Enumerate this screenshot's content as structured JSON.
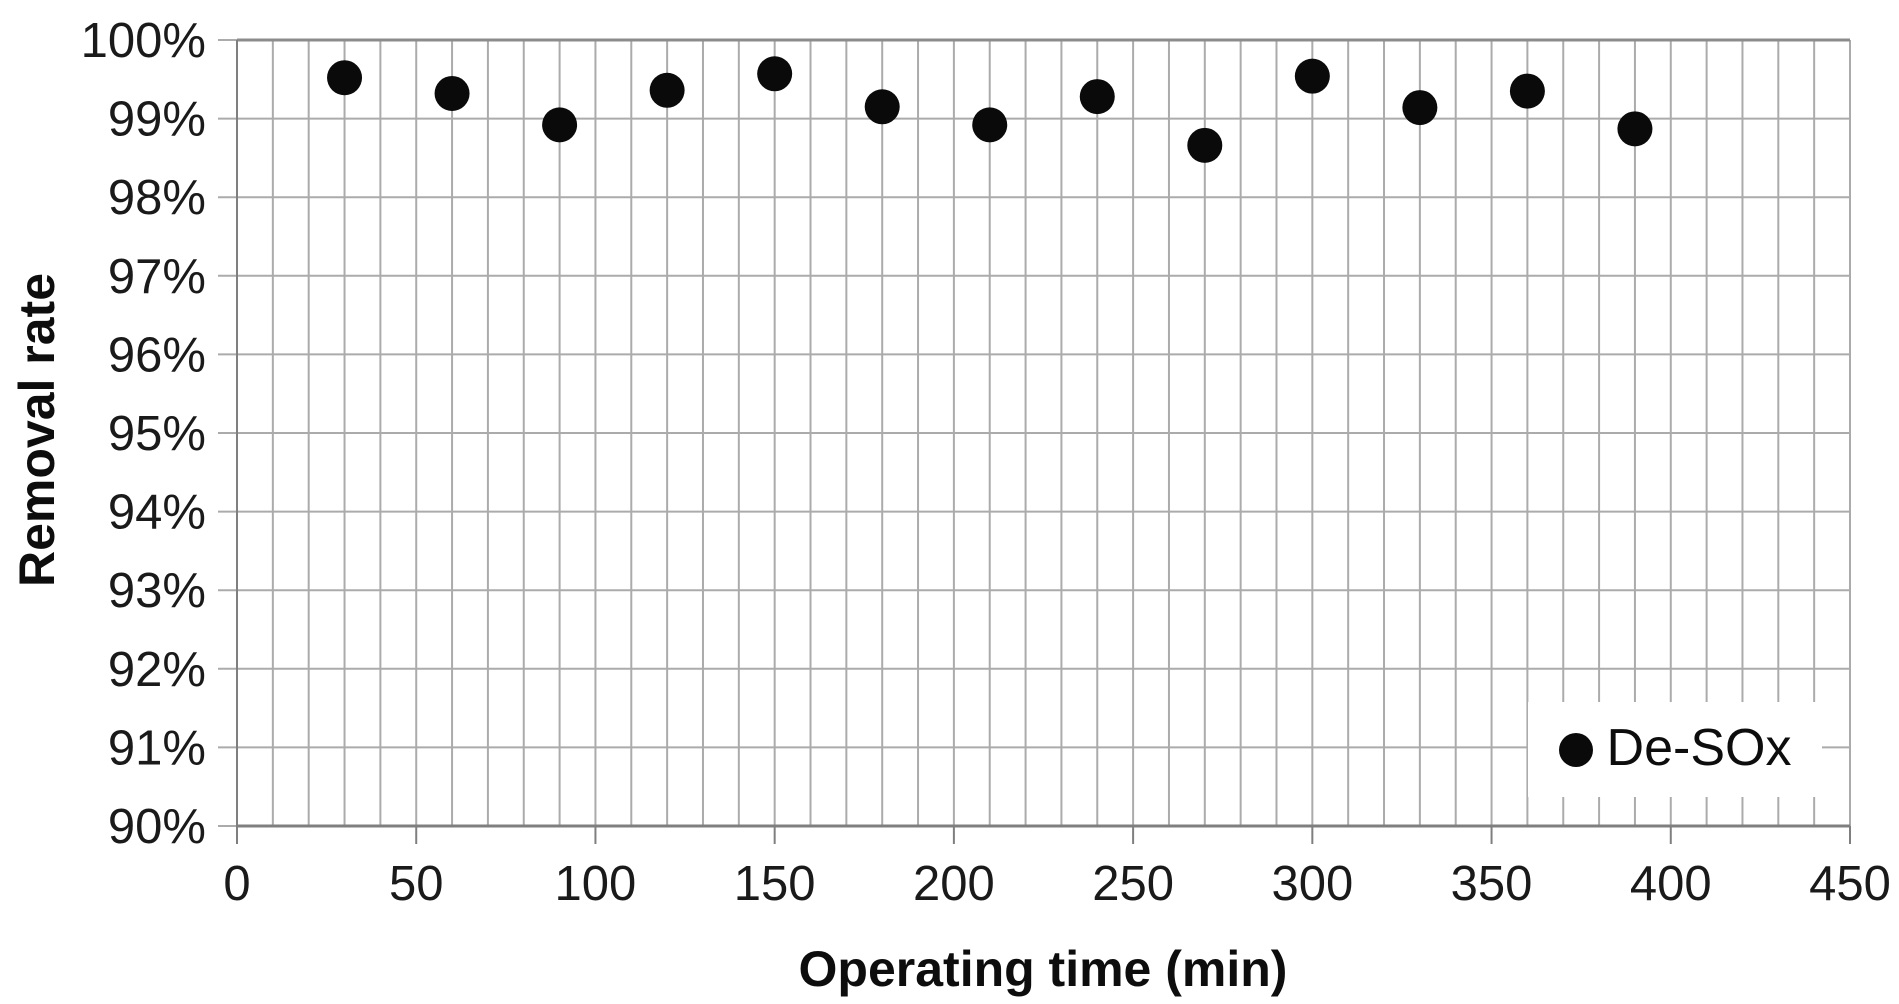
{
  "chart_data": {
    "type": "scatter",
    "title": "",
    "xlabel": "Operating time (min)",
    "ylabel": "Removal rate",
    "x": [
      30,
      60,
      90,
      120,
      150,
      180,
      210,
      240,
      270,
      300,
      330,
      360,
      390
    ],
    "series": [
      {
        "name": "De-SOx",
        "values_percent": [
          99.52,
          99.32,
          98.92,
          99.36,
          99.57,
          99.15,
          98.92,
          99.28,
          98.66,
          99.54,
          99.14,
          99.35,
          98.87
        ]
      }
    ],
    "xlim": [
      0,
      450
    ],
    "ylim_percent": [
      90,
      100
    ],
    "x_ticks": [
      {
        "value": 0,
        "label": "0"
      },
      {
        "value": 50,
        "label": "50"
      },
      {
        "value": 100,
        "label": "100"
      },
      {
        "value": 150,
        "label": "150"
      },
      {
        "value": 200,
        "label": "200"
      },
      {
        "value": 250,
        "label": "250"
      },
      {
        "value": 300,
        "label": "300"
      },
      {
        "value": 350,
        "label": "350"
      },
      {
        "value": 400,
        "label": "400"
      },
      {
        "value": 450,
        "label": "450"
      }
    ],
    "y_ticks": [
      {
        "value": 90,
        "label": "90%"
      },
      {
        "value": 91,
        "label": "91%"
      },
      {
        "value": 92,
        "label": "92%"
      },
      {
        "value": 93,
        "label": "93%"
      },
      {
        "value": 94,
        "label": "94%"
      },
      {
        "value": 95,
        "label": "95%"
      },
      {
        "value": 96,
        "label": "96%"
      },
      {
        "value": 97,
        "label": "97%"
      },
      {
        "value": 98,
        "label": "98%"
      },
      {
        "value": 99,
        "label": "99%"
      },
      {
        "value": 100,
        "label": "100%"
      }
    ],
    "x_minor_gridline_step": 10,
    "grid": "on",
    "legend": {
      "label": "De-SOx",
      "marker": "filled-circle",
      "position": "inside-bottom-right"
    },
    "colors": {
      "point": "#0a0a0a",
      "gridline": "#ababab",
      "plot_border": "#8c8c8c",
      "axis_line": "#7f7f7f",
      "tick_text": "#1a1a1a",
      "background": "#ffffff"
    }
  }
}
